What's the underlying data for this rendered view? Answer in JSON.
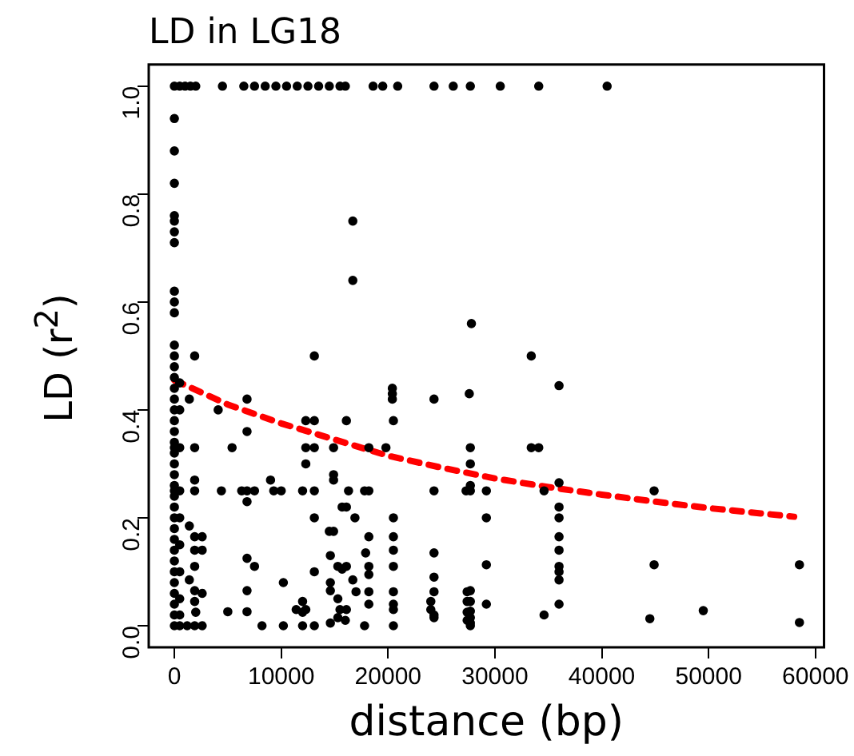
{
  "chart_data": {
    "type": "scatter",
    "title": "LD in LG18",
    "xlabel": "distance (bp)",
    "ylabel": "LD (r$^{2}$)",
    "xlim": [
      -2400,
      60800
    ],
    "ylim": [
      -0.04,
      1.04
    ],
    "xticks": [
      0,
      10000,
      20000,
      30000,
      40000,
      50000,
      60000
    ],
    "yticks": [
      {
        "value": 0,
        "label": "0.0"
      },
      {
        "value": 0.2,
        "label": "0.2"
      },
      {
        "value": 0.4,
        "label": "0.4"
      },
      {
        "value": 0.6,
        "label": "0.6"
      },
      {
        "value": 0.8,
        "label": "0.8"
      },
      {
        "value": 1,
        "label": "1.0"
      }
    ],
    "grid": false,
    "legend": false,
    "marker": "circle",
    "series": [
      {
        "color": "#000000",
        "x": [
          0,
          500,
          1000,
          1500,
          2000,
          4500,
          6500,
          7500,
          8500,
          9500,
          10500,
          11500,
          12500,
          13500,
          14500,
          15500,
          16000,
          18600,
          19500,
          20900,
          24300,
          26100,
          27700,
          30500,
          34100,
          40500,
          0,
          0,
          0,
          0,
          0,
          0,
          0,
          0,
          0,
          0,
          0,
          0,
          0,
          0,
          0,
          0,
          0,
          0,
          0,
          0,
          0,
          0,
          0,
          0,
          0,
          0,
          0,
          0,
          0,
          0,
          0,
          0,
          0,
          0,
          0,
          0,
          0,
          0,
          0,
          500,
          500,
          500,
          500,
          500,
          500,
          500,
          500,
          500,
          500,
          16700,
          16700,
          27800,
          1900,
          13100,
          1400,
          4100,
          6800,
          6800,
          1900,
          5400,
          12300,
          13100,
          12300,
          13100,
          12300,
          16100,
          14900,
          18200,
          19800,
          20400,
          20400,
          20400,
          20500,
          24300,
          27600,
          27700,
          27700,
          1900,
          9000,
          14900,
          14900,
          1900,
          4400,
          6300,
          6800,
          7500,
          9300,
          10000,
          12000,
          13100,
          16300,
          17800,
          18200,
          24300,
          27300,
          6800,
          15700,
          16100,
          13100,
          20500,
          16900,
          1400,
          1900,
          2600,
          14500,
          14900,
          18200,
          20500,
          1900,
          2600,
          17900,
          20500,
          20500,
          24300,
          6800,
          7500,
          14600,
          15300,
          15700,
          16100,
          1900,
          18200,
          18200,
          24300,
          13100,
          10200,
          1400,
          1900,
          2600,
          6800,
          14600,
          14600,
          15300,
          16700,
          17000,
          18200,
          18200,
          20500,
          20500,
          20500,
          24000,
          24300,
          24000,
          24300,
          27400,
          27400,
          27400,
          27400,
          12000,
          11400,
          12300,
          12000,
          5000,
          6800,
          1900,
          2000,
          1200,
          1900,
          2600,
          8200,
          10200,
          12000,
          13100,
          14600,
          15300,
          16000,
          17800,
          16100,
          15500,
          20500,
          24300,
          33400,
          36000,
          33400,
          34100,
          27700,
          27700,
          29200,
          34600,
          36000,
          44900,
          36000,
          36000,
          29200,
          36000,
          36000,
          36000,
          36000,
          36000,
          29200,
          44900,
          58500,
          27700,
          27700,
          27700,
          27700,
          27700,
          27700,
          29200,
          36000,
          34600,
          44500,
          49500,
          58500
        ],
        "values": [
          1,
          1,
          1,
          1,
          1,
          1,
          1,
          1,
          1,
          1,
          1,
          1,
          1,
          1,
          1,
          1,
          1,
          1,
          1,
          1,
          1,
          1,
          1,
          1,
          1,
          1,
          0.94,
          0.88,
          0.82,
          0.76,
          0.75,
          0.73,
          0.71,
          0.62,
          0.6,
          0.58,
          0.52,
          0.5,
          0.48,
          0.46,
          0.44,
          0.42,
          0.4,
          0.38,
          0.36,
          0.34,
          0.33,
          0.32,
          0.3,
          0.28,
          0.26,
          0.25,
          0.24,
          0.22,
          0.2,
          0.18,
          0.16,
          0.14,
          0.12,
          0.1,
          0.08,
          0.06,
          0.04,
          0.02,
          0,
          0.45,
          0.4,
          0.33,
          0.25,
          0.2,
          0.15,
          0.1,
          0.05,
          0.02,
          0,
          0.75,
          0.64,
          0.56,
          0.5,
          0.5,
          0.42,
          0.4,
          0.42,
          0.36,
          0.33,
          0.33,
          0.38,
          0.38,
          0.33,
          0.33,
          0.3,
          0.38,
          0.33,
          0.33,
          0.33,
          0.44,
          0.43,
          0.42,
          0.38,
          0.42,
          0.43,
          0.33,
          0.3,
          0.27,
          0.27,
          0.28,
          0.27,
          0.25,
          0.25,
          0.25,
          0.25,
          0.25,
          0.25,
          0.25,
          0.25,
          0.25,
          0.25,
          0.25,
          0.25,
          0.25,
          0.25,
          0.23,
          0.22,
          0.22,
          0.2,
          0.2,
          0.2,
          0.185,
          0.165,
          0.165,
          0.175,
          0.175,
          0.165,
          0.165,
          0.14,
          0.14,
          0.135,
          0.14,
          0.11,
          0.135,
          0.125,
          0.11,
          0.13,
          0.11,
          0.105,
          0.11,
          0.11,
          0.11,
          0.095,
          0.09,
          0.1,
          0.08,
          0.085,
          0.065,
          0.06,
          0.065,
          0.08,
          0.065,
          0.05,
          0.085,
          0.063,
          0.063,
          0.04,
          0.063,
          0.04,
          0.03,
          0.045,
          0.063,
          0.03,
          0.02,
          0.063,
          0.045,
          0.025,
          0.01,
          0.045,
          0.03,
          0.03,
          0.025,
          0.026,
          0.026,
          0.045,
          0.025,
          0,
          0,
          0,
          0,
          0,
          0,
          0,
          0.005,
          0.015,
          0.01,
          0,
          0.03,
          0.03,
          0,
          0.015,
          0.5,
          0.445,
          0.33,
          0.33,
          0.26,
          0.25,
          0.25,
          0.25,
          0.265,
          0.25,
          0.22,
          0.2,
          0.2,
          0.165,
          0.14,
          0.11,
          0.1,
          0.085,
          0.113,
          0.113,
          0.113,
          0.065,
          0.045,
          0.027,
          0.015,
          0.005,
          0,
          0.04,
          0.04,
          0.02,
          0.013,
          0.028,
          0.006
        ]
      },
      {
        "type": "line",
        "color": "#ff0000",
        "line_style": "dashed",
        "marker": "none",
        "x": [
          0,
          5000,
          10000,
          15000,
          20000,
          25000,
          30000,
          35000,
          40000,
          45000,
          50000,
          58000
        ],
        "values": [
          0.455,
          0.41,
          0.375,
          0.345,
          0.315,
          0.293,
          0.273,
          0.257,
          0.243,
          0.23,
          0.218,
          0.202
        ]
      }
    ]
  }
}
